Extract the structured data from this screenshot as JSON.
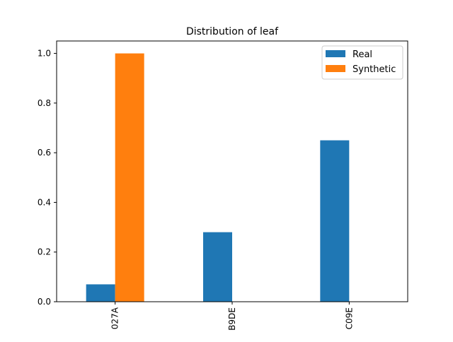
{
  "chart_data": {
    "type": "bar",
    "title": "Distribution of leaf",
    "xlabel": "",
    "ylabel": "",
    "categories": [
      "027A",
      "B9DE",
      "C09E"
    ],
    "series": [
      {
        "name": "Real",
        "values": [
          0.07,
          0.28,
          0.65
        ],
        "color": "#1f77b4"
      },
      {
        "name": "Synthetic",
        "values": [
          1.0,
          0.0,
          0.0
        ],
        "color": "#ff7f0e"
      }
    ],
    "ylim": [
      0,
      1.05
    ],
    "yticks": [
      0.0,
      0.2,
      0.4,
      0.6,
      0.8,
      1.0
    ],
    "ytick_labels": [
      "0.0",
      "0.2",
      "0.4",
      "0.6",
      "0.8",
      "1.0"
    ],
    "legend_position": "top-right",
    "grid": false
  }
}
